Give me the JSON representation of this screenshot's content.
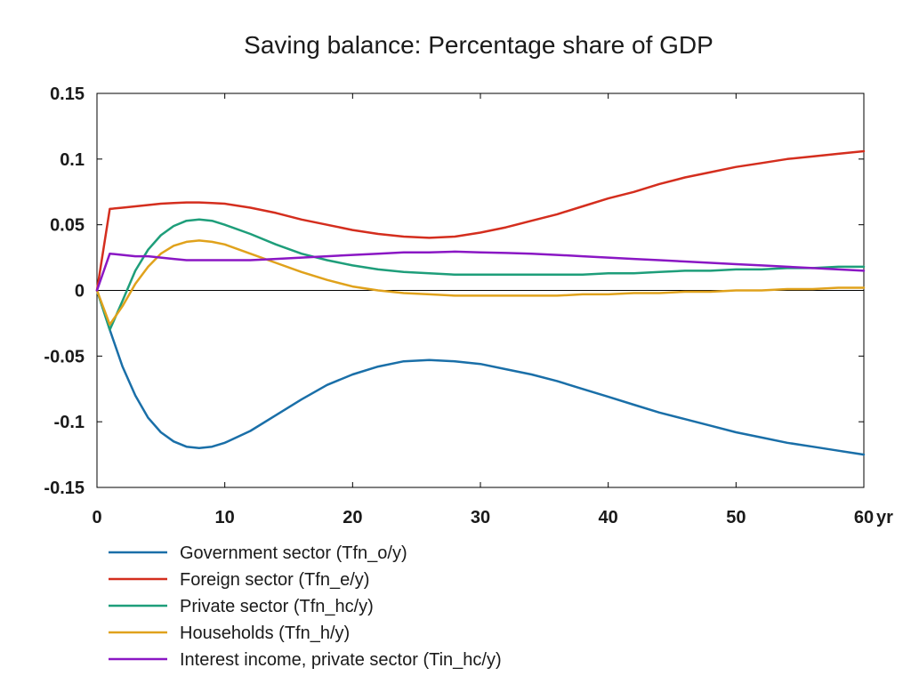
{
  "chart_data": {
    "type": "line",
    "title": "Saving balance: Percentage share of GDP",
    "xlabel": "",
    "ylabel": "",
    "x_unit_label": "yr",
    "xlim": [
      0,
      60
    ],
    "ylim": [
      -0.15,
      0.15
    ],
    "x_ticks": [
      0,
      10,
      20,
      30,
      40,
      50,
      60
    ],
    "x_tick_labels": [
      "0",
      "10",
      "20",
      "30",
      "40",
      "50",
      "60"
    ],
    "y_ticks": [
      0.15,
      0.1,
      0.05,
      0,
      -0.05,
      -0.1,
      -0.15
    ],
    "y_tick_labels": [
      "0.15",
      "0.1",
      "0.05",
      "0",
      "-0.05",
      "-0.1",
      "-0.15"
    ],
    "grid": false,
    "zero_line": true,
    "legend_position": "bottom",
    "series": [
      {
        "name": "Government sector (Tfn_o/y)",
        "color": "#1a6fa8",
        "x": [
          0,
          1,
          2,
          3,
          4,
          5,
          6,
          7,
          8,
          9,
          10,
          12,
          14,
          16,
          18,
          20,
          22,
          24,
          26,
          28,
          30,
          32,
          34,
          36,
          38,
          40,
          42,
          44,
          46,
          48,
          50,
          52,
          54,
          56,
          58,
          60
        ],
        "y": [
          0,
          -0.03,
          -0.058,
          -0.08,
          -0.097,
          -0.108,
          -0.115,
          -0.119,
          -0.12,
          -0.119,
          -0.116,
          -0.107,
          -0.095,
          -0.083,
          -0.072,
          -0.064,
          -0.058,
          -0.054,
          -0.053,
          -0.054,
          -0.056,
          -0.06,
          -0.064,
          -0.069,
          -0.075,
          -0.081,
          -0.087,
          -0.093,
          -0.098,
          -0.103,
          -0.108,
          -0.112,
          -0.116,
          -0.119,
          -0.122,
          -0.125
        ]
      },
      {
        "name": "Foreign sector (Tfn_e/y)",
        "color": "#d42e1e",
        "x": [
          0,
          1,
          2,
          3,
          4,
          5,
          6,
          7,
          8,
          9,
          10,
          12,
          14,
          16,
          18,
          20,
          22,
          24,
          26,
          28,
          30,
          32,
          34,
          36,
          38,
          40,
          42,
          44,
          46,
          48,
          50,
          52,
          54,
          56,
          58,
          60
        ],
        "y": [
          0,
          0.062,
          0.063,
          0.064,
          0.065,
          0.066,
          0.0665,
          0.067,
          0.067,
          0.0665,
          0.066,
          0.063,
          0.059,
          0.054,
          0.05,
          0.046,
          0.043,
          0.041,
          0.04,
          0.041,
          0.044,
          0.048,
          0.053,
          0.058,
          0.064,
          0.07,
          0.075,
          0.081,
          0.086,
          0.09,
          0.094,
          0.097,
          0.1,
          0.102,
          0.104,
          0.106
        ]
      },
      {
        "name": "Private sector (Tfn_hc/y)",
        "color": "#1e9e7a",
        "x": [
          0,
          1,
          2,
          3,
          4,
          5,
          6,
          7,
          8,
          9,
          10,
          12,
          14,
          16,
          18,
          20,
          22,
          24,
          26,
          28,
          30,
          32,
          34,
          36,
          38,
          40,
          42,
          44,
          46,
          48,
          50,
          52,
          54,
          56,
          58,
          60
        ],
        "y": [
          0,
          -0.03,
          -0.008,
          0.015,
          0.031,
          0.042,
          0.049,
          0.053,
          0.054,
          0.053,
          0.05,
          0.043,
          0.035,
          0.028,
          0.023,
          0.019,
          0.016,
          0.014,
          0.013,
          0.012,
          0.012,
          0.012,
          0.012,
          0.012,
          0.012,
          0.013,
          0.013,
          0.014,
          0.015,
          0.015,
          0.016,
          0.016,
          0.017,
          0.017,
          0.018,
          0.018
        ]
      },
      {
        "name": "Households (Tfn_h/y)",
        "color": "#e0a21c",
        "x": [
          0,
          1,
          2,
          3,
          4,
          5,
          6,
          7,
          8,
          9,
          10,
          12,
          14,
          16,
          18,
          20,
          22,
          24,
          26,
          28,
          30,
          32,
          34,
          36,
          38,
          40,
          42,
          44,
          46,
          48,
          50,
          52,
          54,
          56,
          58,
          60
        ],
        "y": [
          0,
          -0.026,
          -0.012,
          0.005,
          0.018,
          0.028,
          0.034,
          0.037,
          0.038,
          0.037,
          0.035,
          0.028,
          0.021,
          0.014,
          0.008,
          0.003,
          0.0,
          -0.002,
          -0.003,
          -0.004,
          -0.004,
          -0.004,
          -0.004,
          -0.004,
          -0.003,
          -0.003,
          -0.002,
          -0.002,
          -0.001,
          -0.001,
          0.0,
          0.0,
          0.001,
          0.001,
          0.002,
          0.002
        ]
      },
      {
        "name": "Interest income, private sector (Tin_hc/y)",
        "color": "#8a17c4",
        "x": [
          0,
          1,
          2,
          3,
          4,
          5,
          6,
          7,
          8,
          9,
          10,
          12,
          14,
          16,
          18,
          20,
          22,
          24,
          26,
          28,
          30,
          32,
          34,
          36,
          38,
          40,
          42,
          44,
          46,
          48,
          50,
          52,
          54,
          56,
          58,
          60
        ],
        "y": [
          0,
          0.028,
          0.027,
          0.026,
          0.026,
          0.025,
          0.024,
          0.023,
          0.023,
          0.023,
          0.023,
          0.023,
          0.024,
          0.025,
          0.026,
          0.027,
          0.028,
          0.029,
          0.029,
          0.0295,
          0.029,
          0.0285,
          0.028,
          0.027,
          0.026,
          0.025,
          0.024,
          0.023,
          0.022,
          0.021,
          0.02,
          0.019,
          0.018,
          0.017,
          0.016,
          0.015
        ]
      }
    ]
  }
}
